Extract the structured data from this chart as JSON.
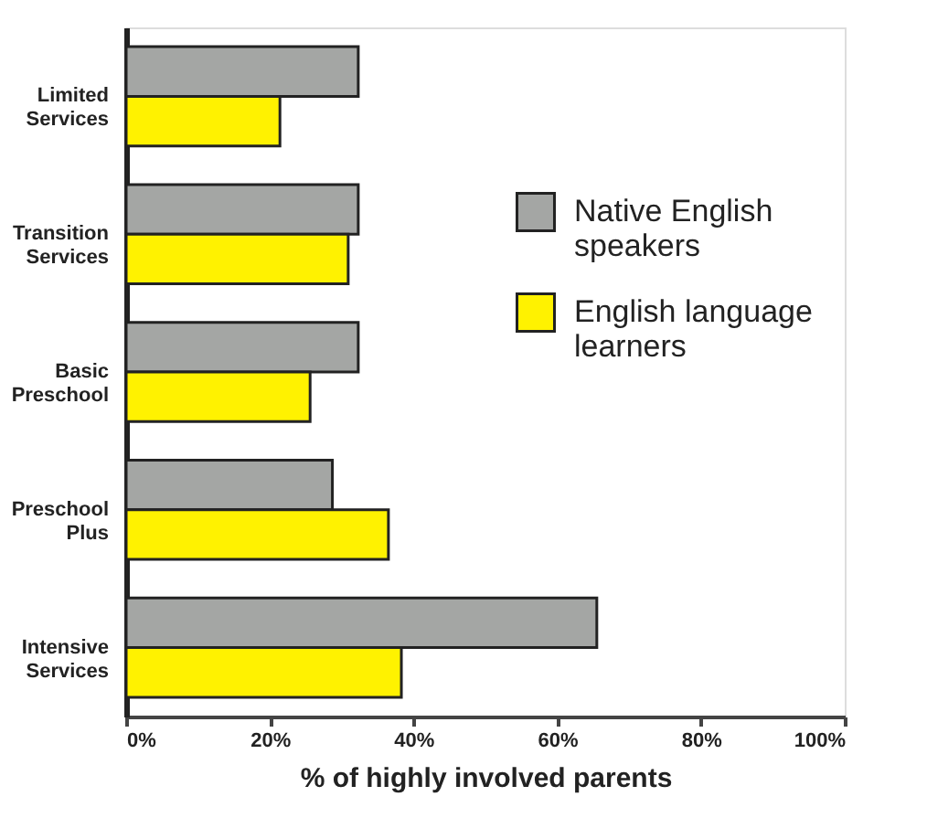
{
  "chart_data": {
    "type": "bar",
    "orientation": "horizontal",
    "xlabel": "% of highly involved parents",
    "categories": [
      "Limited Services",
      "Transition Services",
      "Basic Preschool",
      "Preschool Plus",
      "Intensive Services"
    ],
    "series": [
      {
        "name": "Native English speakers",
        "color": "#a4a6a4",
        "values": [
          32.3,
          32.3,
          32.3,
          28.7,
          65.5
        ]
      },
      {
        "name": "English language learners",
        "color": "#fff200",
        "values": [
          21.4,
          30.9,
          25.6,
          36.5,
          38.3
        ]
      }
    ],
    "xlim": [
      0,
      100
    ],
    "xticks": [
      {
        "value": 0,
        "label": "0%"
      },
      {
        "value": 20,
        "label": "20%"
      },
      {
        "value": 40,
        "label": "40%"
      },
      {
        "value": 60,
        "label": "60%"
      },
      {
        "value": 80,
        "label": "80%"
      },
      {
        "value": 100,
        "label": "100%"
      }
    ],
    "legend": "right",
    "grid": false
  }
}
